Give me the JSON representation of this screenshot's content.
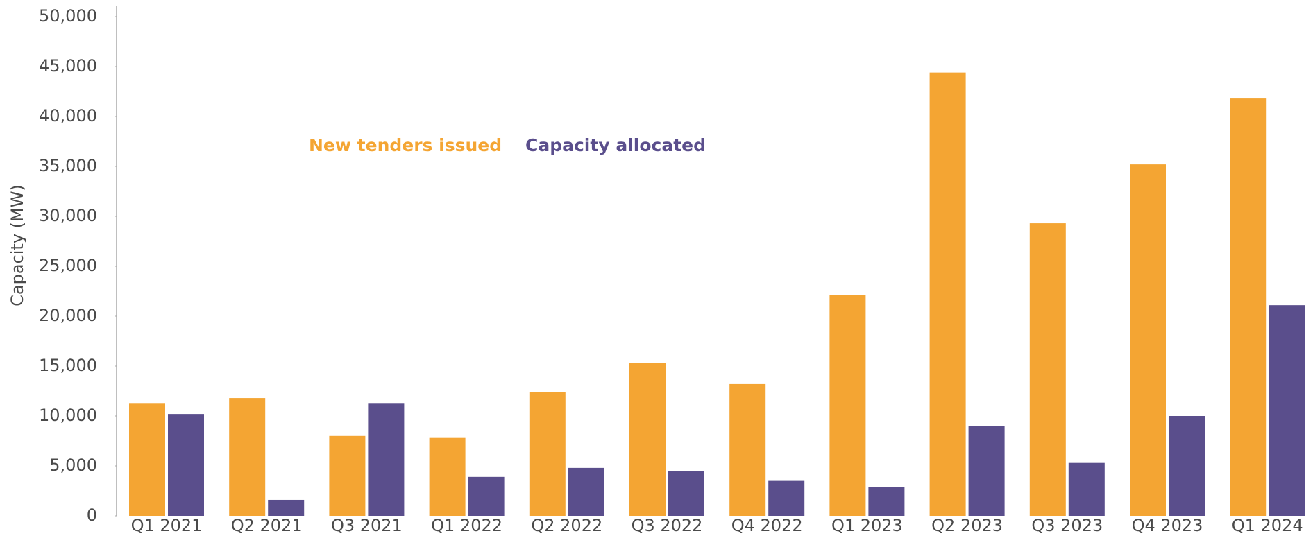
{
  "chart_data": {
    "type": "bar",
    "y_label": "Capacity  (MW)",
    "categories": [
      "Q1 2021",
      "Q2 2021",
      "Q3 2021",
      "Q1 2022",
      "Q2 2022",
      "Q3 2022",
      "Q4 2022",
      "Q1 2023",
      "Q2 2023",
      "Q3 2023",
      "Q4 2023",
      "Q1 2024"
    ],
    "series": [
      {
        "name": "New tenders issued",
        "color": "#f4a533",
        "values": [
          11300,
          11800,
          8000,
          7800,
          12400,
          15300,
          13200,
          22100,
          44400,
          29300,
          35200,
          41800
        ]
      },
      {
        "name": "Capacity allocated",
        "color": "#5a4e8c",
        "values": [
          10200,
          1600,
          11300,
          3900,
          4800,
          4500,
          3500,
          2900,
          9000,
          5300,
          10000,
          21100
        ]
      }
    ],
    "ylim": [
      0,
      50000
    ],
    "yticks": [
      0,
      {
        "value": 5000,
        "label": "5,000"
      },
      {
        "value": 10000,
        "label": "10,000"
      },
      {
        "value": 15000,
        "label": "15,000"
      },
      {
        "value": 20000,
        "label": "20,000"
      },
      {
        "value": 25000,
        "label": "25,000"
      },
      {
        "value": 30000,
        "label": "30,000"
      },
      {
        "value": 35000,
        "label": "35,000"
      },
      {
        "value": 40000,
        "label": "40,000"
      },
      {
        "value": 45000,
        "label": "45,000"
      },
      {
        "value": 50000,
        "label": "50,000"
      }
    ],
    "legend": "top-left",
    "grid": false
  }
}
